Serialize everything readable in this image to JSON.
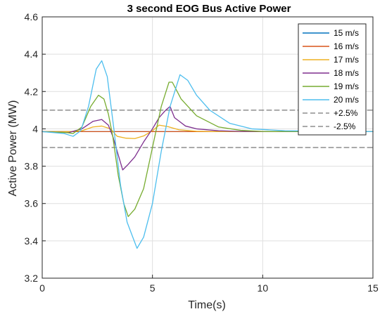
{
  "chart_data": {
    "type": "line",
    "title": "3 second EOG Bus Active Power",
    "xlabel": "Time(s)",
    "ylabel": "Active Power (MW)",
    "xlim": [
      0,
      15
    ],
    "ylim": [
      3.2,
      4.6
    ],
    "xticks": [
      "0",
      "5",
      "10",
      "15"
    ],
    "yticks": [
      "3.2",
      "3.4",
      "3.6",
      "3.8",
      "4",
      "4.2",
      "4.4",
      "4.6"
    ],
    "grid": true,
    "legend_position": "top-right",
    "series": [
      {
        "name": "15 m/s",
        "color": "#0072BD",
        "style": "solid",
        "x": [
          0,
          15
        ],
        "y": [
          3.985,
          3.985
        ]
      },
      {
        "name": "16 m/s",
        "color": "#D95319",
        "style": "solid",
        "x": [
          0,
          15
        ],
        "y": [
          3.985,
          3.985
        ]
      },
      {
        "name": "17 m/s",
        "color": "#EDB120",
        "style": "solid",
        "x": [
          0,
          1.2,
          1.8,
          2.3,
          2.7,
          3.1,
          3.4,
          3.8,
          4.2,
          4.6,
          5.0,
          5.3,
          5.7,
          6.2,
          7,
          8,
          15
        ],
        "y": [
          3.985,
          3.985,
          3.99,
          4.01,
          4.015,
          4.0,
          3.96,
          3.95,
          3.948,
          3.962,
          3.99,
          4.02,
          4.012,
          3.995,
          3.987,
          3.985,
          3.985
        ]
      },
      {
        "name": "18 m/s",
        "color": "#7E2F8E",
        "style": "solid",
        "x": [
          0,
          1.2,
          1.8,
          2.3,
          2.7,
          3.0,
          3.2,
          3.45,
          3.65,
          3.9,
          4.2,
          4.6,
          5.0,
          5.3,
          5.6,
          5.8,
          6.0,
          6.5,
          7,
          8,
          9,
          15
        ],
        "y": [
          3.985,
          3.98,
          4.0,
          4.04,
          4.05,
          4.02,
          3.96,
          3.86,
          3.78,
          3.81,
          3.85,
          3.93,
          4.0,
          4.06,
          4.1,
          4.12,
          4.06,
          4.015,
          4.0,
          3.99,
          3.986,
          3.985
        ]
      },
      {
        "name": "19 m/s",
        "color": "#77AC30",
        "style": "solid",
        "x": [
          0,
          1.1,
          1.4,
          1.8,
          2.2,
          2.55,
          2.8,
          3.0,
          3.2,
          3.45,
          3.7,
          3.9,
          4.2,
          4.6,
          5.0,
          5.4,
          5.75,
          5.9,
          6.3,
          7,
          8,
          9,
          10,
          15
        ],
        "y": [
          3.985,
          3.98,
          3.975,
          4.01,
          4.12,
          4.18,
          4.16,
          4.08,
          3.96,
          3.75,
          3.6,
          3.53,
          3.57,
          3.68,
          3.9,
          4.12,
          4.25,
          4.25,
          4.16,
          4.07,
          4.01,
          3.992,
          3.986,
          3.985
        ]
      },
      {
        "name": "20 m/s",
        "color": "#4DBEEE",
        "style": "solid",
        "x": [
          0,
          1.0,
          1.4,
          1.75,
          2.1,
          2.45,
          2.7,
          2.95,
          3.25,
          3.55,
          3.85,
          4.3,
          4.6,
          5.0,
          5.4,
          5.8,
          6.25,
          6.6,
          7,
          7.6,
          8.5,
          9.5,
          11,
          15
        ],
        "y": [
          3.985,
          3.975,
          3.96,
          3.99,
          4.12,
          4.32,
          4.365,
          4.28,
          4.0,
          3.7,
          3.5,
          3.36,
          3.42,
          3.6,
          3.88,
          4.12,
          4.29,
          4.26,
          4.18,
          4.1,
          4.03,
          4.0,
          3.99,
          3.985
        ]
      },
      {
        "name": "+2.5%",
        "color": "#555555",
        "style": "dashed",
        "x": [
          0,
          15
        ],
        "y": [
          4.1,
          4.1
        ]
      },
      {
        "name": "-2.5%",
        "color": "#555555",
        "style": "dashed",
        "x": [
          0,
          15
        ],
        "y": [
          3.9,
          3.9
        ]
      }
    ]
  }
}
